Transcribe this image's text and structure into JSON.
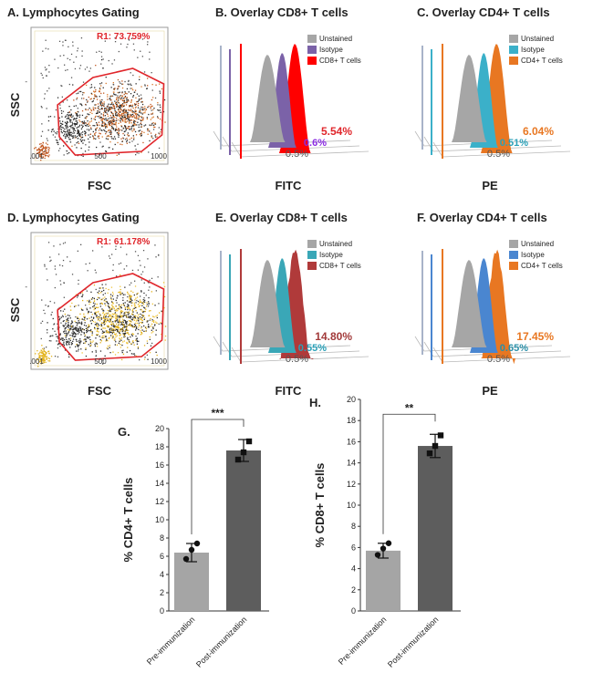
{
  "colors": {
    "gate": "#e0262b",
    "unstained": "#a6a6a6",
    "bar_pre": "#a5a5a5",
    "bar_post": "#5d5d5d",
    "cd8_B": "#ff0000",
    "iso_B": "#7b62a8",
    "cd4": "#e87722",
    "iso_C": "#3bb0c9",
    "cd8_E": "#b03a3a",
    "iso_E": "#3aa7b7",
    "iso_F": "#4a86d0",
    "pct_B_cd8": "#e0262b",
    "pct_B_iso": "#8a2be2",
    "pct_orange": "#e87722",
    "pct_teal": "#2aa0b8",
    "pct_E_cd8": "#a23a3a",
    "pct_F_iso": "#2a8fa8",
    "pct_gray": "#555555"
  },
  "chart_data": [
    {
      "id": "A",
      "type": "scatter",
      "title": "A. Lymphocytes  Gating",
      "xlabel": "FSC",
      "ylabel": "SSC",
      "x_ticks": [
        ".001",
        "500",
        "1000"
      ],
      "gate_label": "R1: 73.759%"
    },
    {
      "id": "B",
      "type": "area",
      "title": "B. Overlay CD8+ T cells",
      "xlabel": "FITC",
      "legend": [
        {
          "label": "Unstained",
          "color": "#a6a6a6"
        },
        {
          "label": "Isotype",
          "color": "#7b62a8"
        },
        {
          "label": "CD8+ T cells",
          "color": "#ff0000"
        }
      ],
      "percents": [
        {
          "text": "5.54%",
          "color": "#e0262b"
        },
        {
          "text": "0.6%",
          "color": "#8a2be2"
        },
        {
          "text": "0.5%",
          "color": "#555555"
        }
      ]
    },
    {
      "id": "C",
      "type": "area",
      "title": "C. Overlay CD4+ T cells",
      "xlabel": "PE",
      "legend": [
        {
          "label": "Unstained",
          "color": "#a6a6a6"
        },
        {
          "label": "Isotype",
          "color": "#3bb0c9"
        },
        {
          "label": "CD4+ T cells",
          "color": "#e87722"
        }
      ],
      "percents": [
        {
          "text": "6.04%",
          "color": "#e87722"
        },
        {
          "text": "0.51%",
          "color": "#2aa0b8"
        },
        {
          "text": "0.5%",
          "color": "#555555"
        }
      ]
    },
    {
      "id": "D",
      "type": "scatter",
      "title": "D. Lymphocytes  Gating",
      "xlabel": "FSC",
      "ylabel": "SSC",
      "x_ticks": [
        ".001",
        "500",
        "1000"
      ],
      "gate_label": "R1: 61.178%"
    },
    {
      "id": "E",
      "type": "area",
      "title": "E. Overlay CD8+ T cells",
      "xlabel": "FITC",
      "legend": [
        {
          "label": "Unstained",
          "color": "#a6a6a6"
        },
        {
          "label": "Isotype",
          "color": "#3aa7b7"
        },
        {
          "label": "CD8+ T cells",
          "color": "#b03a3a"
        }
      ],
      "percents": [
        {
          "text": "14.80%",
          "color": "#a23a3a"
        },
        {
          "text": "0.55%",
          "color": "#2aa0b8"
        },
        {
          "text": "0.5%",
          "color": "#555555"
        }
      ]
    },
    {
      "id": "F",
      "type": "area",
      "title": "F. Overlay CD4+ T cells",
      "xlabel": "PE",
      "legend": [
        {
          "label": "Unstained",
          "color": "#a6a6a6"
        },
        {
          "label": "Isotype",
          "color": "#4a86d0"
        },
        {
          "label": "CD4+ T cells",
          "color": "#e87722"
        }
      ],
      "percents": [
        {
          "text": "17.45%",
          "color": "#e87722"
        },
        {
          "text": "0.65%",
          "color": "#2a8fa8"
        },
        {
          "text": "0.5%",
          "color": "#555555"
        }
      ]
    },
    {
      "id": "G",
      "type": "bar",
      "title": "G.",
      "ylabel": "% CD4+ T cells",
      "ylim": [
        0,
        20
      ],
      "y_ticks": [
        0,
        2,
        4,
        6,
        8,
        10,
        12,
        14,
        16,
        18,
        20
      ],
      "categories": [
        "Pre-immunization",
        "Post-immunization"
      ],
      "values": [
        6.4,
        17.6
      ],
      "errors": [
        1.0,
        1.2
      ],
      "points": [
        [
          5.7,
          6.7,
          7.4
        ],
        [
          16.6,
          17.4,
          18.6
        ]
      ],
      "significance": "***"
    },
    {
      "id": "H",
      "type": "bar",
      "title": "H.",
      "ylabel": "% CD8+ T cells",
      "ylim": [
        0,
        20
      ],
      "y_ticks": [
        0,
        2,
        4,
        6,
        8,
        10,
        12,
        14,
        16,
        18,
        20
      ],
      "categories": [
        "Pre-immunization",
        "Post-immunization"
      ],
      "values": [
        5.7,
        15.6
      ],
      "errors": [
        0.7,
        1.1
      ],
      "points": [
        [
          5.3,
          5.9,
          6.4
        ],
        [
          14.9,
          15.6,
          16.6
        ]
      ],
      "significance": "**"
    }
  ]
}
